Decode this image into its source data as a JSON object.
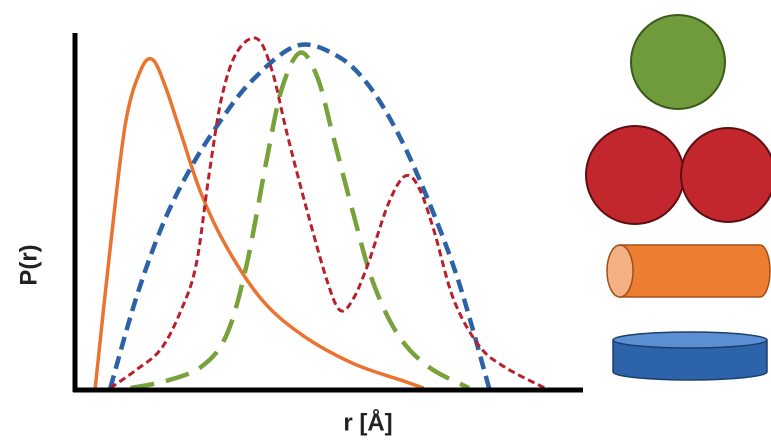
{
  "chart_data": {
    "type": "line",
    "y_label": "P(r)",
    "x_label": "r [Å]",
    "xlim": [
      0,
      100
    ],
    "ylim": [
      0,
      100
    ],
    "series": [
      {
        "color": "#ea7330",
        "dash": "solid",
        "x": [
          4,
          7,
          10,
          13,
          15.4,
          18,
          21,
          25,
          30,
          37,
          45,
          55,
          65,
          69
        ],
        "values": [
          0,
          40,
          75,
          90,
          93,
          85,
          72,
          55,
          40,
          25,
          15,
          7,
          2,
          0
        ]
      },
      {
        "color": "#2c62a6",
        "dash": "medium",
        "x": [
          7,
          12,
          17,
          22,
          28,
          35,
          44,
          52,
          58,
          64,
          70,
          76,
          82
        ],
        "values": [
          0,
          25,
          45,
          60,
          74,
          87,
          97,
          94,
          86,
          72,
          53,
          30,
          0
        ]
      },
      {
        "color": "#78a23c",
        "dash": "long",
        "x": [
          11,
          18,
          25,
          30,
          34,
          38,
          41,
          44.6,
          48,
          51,
          55,
          59,
          64,
          70,
          78
        ],
        "values": [
          0,
          2,
          6,
          15,
          35,
          65,
          85,
          95,
          88,
          72,
          50,
          30,
          15,
          6,
          0
        ]
      },
      {
        "color": "#b8202c",
        "dash": "short",
        "x": [
          7,
          12,
          17,
          21,
          24,
          26.5,
          29,
          32,
          36,
          39,
          42,
          46,
          50,
          52.5,
          55,
          58,
          62,
          65.3,
          68,
          71,
          75,
          80,
          85,
          93
        ],
        "values": [
          0,
          5,
          11,
          22,
          35,
          60,
          82,
          95,
          99,
          90,
          72,
          50,
          30,
          22,
          25,
          35,
          52,
          60,
          57,
          45,
          25,
          12,
          6,
          0
        ]
      }
    ]
  }
}
